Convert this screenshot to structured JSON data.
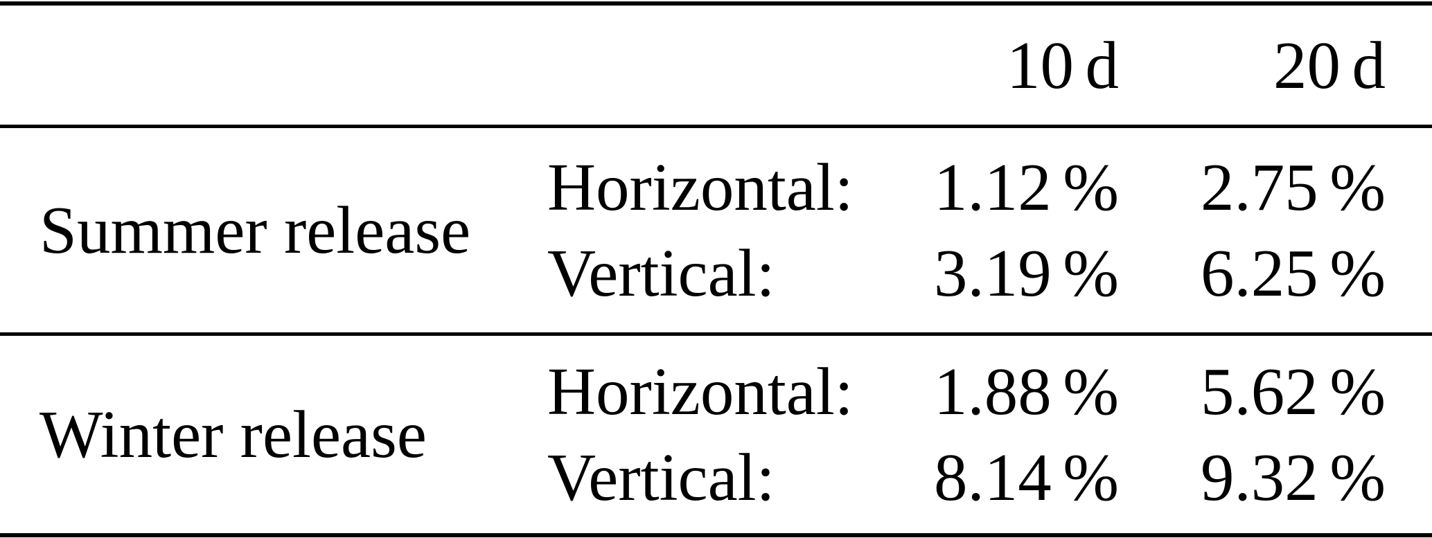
{
  "table": {
    "headers": [
      "10 d",
      "20 d"
    ],
    "sections": [
      {
        "label": "Summer release",
        "metrics": [
          {
            "name": "Horizontal:",
            "values": [
              "1.12 %",
              "2.75 %"
            ]
          },
          {
            "name": "Vertical:",
            "values": [
              "3.19 %",
              "6.25 %"
            ]
          }
        ]
      },
      {
        "label": "Winter release",
        "metrics": [
          {
            "name": "Horizontal:",
            "values": [
              "1.88 %",
              "5.62 %"
            ]
          },
          {
            "name": "Vertical:",
            "values": [
              "8.14 %",
              "9.32 %"
            ]
          }
        ]
      }
    ]
  },
  "colors": {
    "background": "#ffffff",
    "text": "#000000",
    "rule": "#000000"
  }
}
